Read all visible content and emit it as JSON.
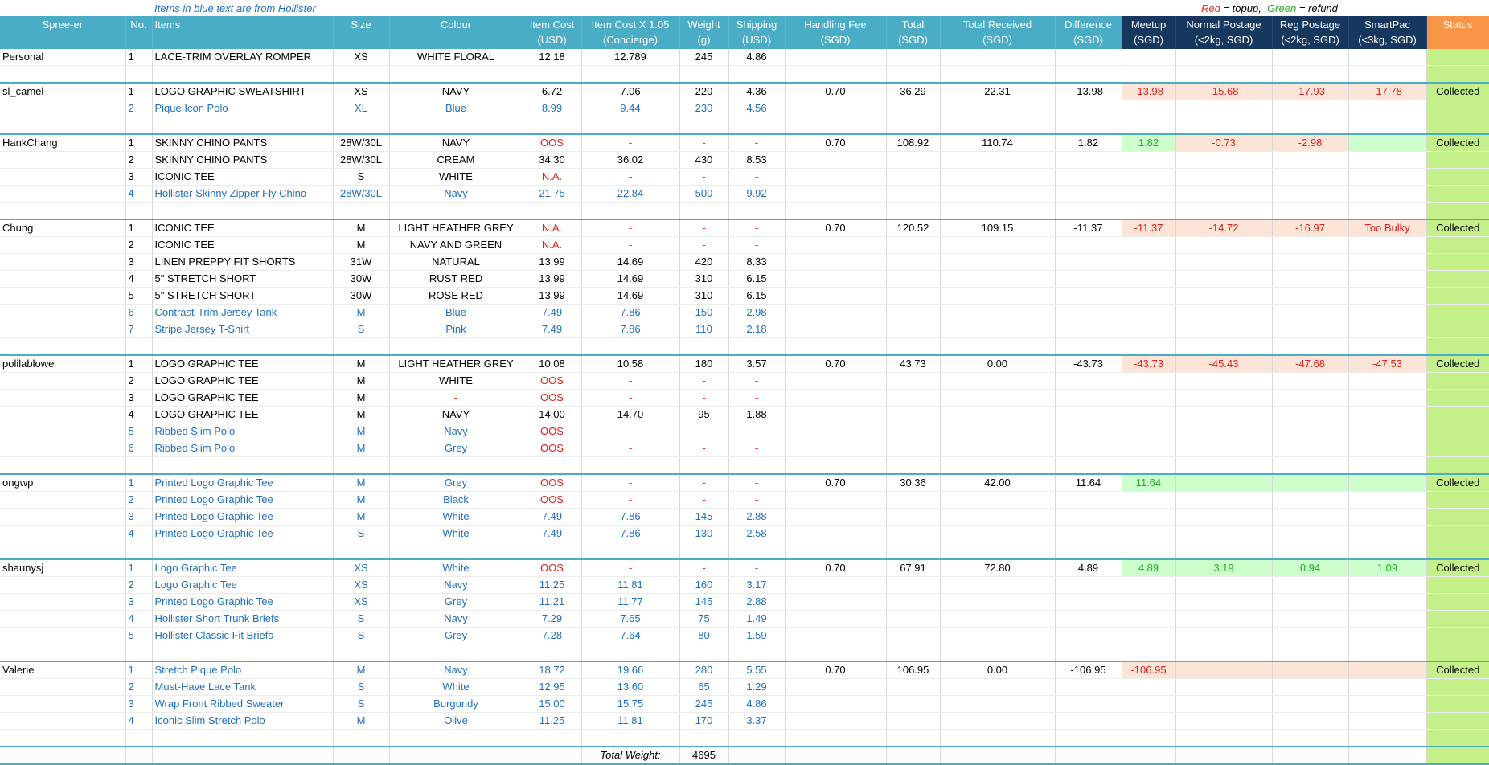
{
  "note_left": "Items in blue text are from Hollister",
  "note_red": "Red",
  "note_topup": " = topup,",
  "note_green": "Green",
  "note_refund": " = refund",
  "headers": [
    "Spree-er",
    "No.",
    "Items",
    "Size",
    "Colour",
    "Item Cost\n(USD)",
    "Item Cost X 1.05\n(Concierge)",
    "Weight\n(g)",
    "Shipping\n(USD)",
    "Handling Fee\n(SGD)",
    "Total\n(SGD)",
    "Total Received\n(SGD)",
    "Difference\n(SGD)",
    "Meetup\n(SGD)",
    "Normal Postage\n(<2kg, SGD)",
    "Reg Postage\n(<2kg, SGD)",
    "SmartPac\n(<3kg, SGD)",
    "Status"
  ],
  "total_weight_label": "Total Weight:",
  "total_weight_value": "4695",
  "colors": {
    "header": "#4bacc6",
    "header_dark": "#17375e",
    "status_header": "#f79646",
    "status_cell": "#c4f08a",
    "topup_bg": "#fce4d6",
    "refund_bg": "#ccffcc",
    "blue_text": "#1f6fbf",
    "red_text": "#e02020",
    "green_text": "#22aa22"
  },
  "groups": [
    {
      "name": "Personal",
      "handling": "",
      "total": "",
      "received": "",
      "difference": "",
      "meetup": "",
      "normal": "",
      "reg": "",
      "smartpac": "",
      "status": "",
      "tone": "none",
      "items": [
        {
          "no": "1",
          "item": "LACE-TRIM OVERLAY ROMPER",
          "size": "XS",
          "colour": "WHITE FLORAL",
          "cost": "12.18",
          "cost105": "12.789",
          "weight": "245",
          "ship": "4.86",
          "hollister": false,
          "costRed": false
        }
      ]
    },
    {
      "name": "sl_camel",
      "handling": "0.70",
      "total": "36.29",
      "received": "22.31",
      "difference": "-13.98",
      "meetup": "-13.98",
      "normal": "-15.68",
      "reg": "-17.93",
      "smartpac": "-17.78",
      "status": "Collected",
      "tone": "topup",
      "items": [
        {
          "no": "1",
          "item": "LOGO GRAPHIC SWEATSHIRT",
          "size": "XS",
          "colour": "NAVY",
          "cost": "6.72",
          "cost105": "7.06",
          "weight": "220",
          "ship": "4.36",
          "hollister": false,
          "costRed": false
        },
        {
          "no": "2",
          "item": "Pique Icon Polo",
          "size": "XL",
          "colour": "Blue",
          "cost": "8.99",
          "cost105": "9.44",
          "weight": "230",
          "ship": "4.56",
          "hollister": true,
          "costRed": false
        }
      ]
    },
    {
      "name": "HankChang",
      "handling": "0.70",
      "total": "108.92",
      "received": "110.74",
      "difference": "1.82",
      "meetup": "1.82",
      "normal": "-0.73",
      "reg": "-2.98",
      "smartpac": "",
      "status": "Collected",
      "tone": "mixed_hank",
      "items": [
        {
          "no": "1",
          "item": "SKINNY CHINO PANTS",
          "size": "28W/30L",
          "colour": "NAVY",
          "cost": "OOS",
          "cost105": "-",
          "weight": "-",
          "ship": "-",
          "hollister": false,
          "costRed": true
        },
        {
          "no": "2",
          "item": "SKINNY CHINO PANTS",
          "size": "28W/30L",
          "colour": "CREAM",
          "cost": "34.30",
          "cost105": "36.02",
          "weight": "430",
          "ship": "8.53",
          "hollister": false,
          "costRed": false
        },
        {
          "no": "3",
          "item": "ICONIC TEE",
          "size": "S",
          "colour": "WHITE",
          "cost": "N.A.",
          "cost105": "-",
          "weight": "-",
          "ship": "-",
          "hollister": false,
          "costRed": true
        },
        {
          "no": "4",
          "item": "Hollister Skinny Zipper Fly Chino",
          "size": "28W/30L",
          "colour": "Navy",
          "cost": "21.75",
          "cost105": "22.84",
          "weight": "500",
          "ship": "9.92",
          "hollister": true,
          "costRed": false
        }
      ]
    },
    {
      "name": "Chung",
      "handling": "0.70",
      "total": "120.52",
      "received": "109.15",
      "difference": "-11.37",
      "meetup": "-11.37",
      "normal": "-14.72",
      "reg": "-16.97",
      "smartpac": "Too Bulky",
      "status": "Collected",
      "tone": "topup",
      "items": [
        {
          "no": "1",
          "item": "ICONIC TEE",
          "size": "M",
          "colour": "LIGHT HEATHER GREY",
          "cost": "N.A.",
          "cost105": "-",
          "weight": "-",
          "ship": "-",
          "hollister": false,
          "costRed": true
        },
        {
          "no": "2",
          "item": "ICONIC TEE",
          "size": "M",
          "colour": "NAVY AND GREEN",
          "cost": "N.A.",
          "cost105": "-",
          "weight": "-",
          "ship": "-",
          "hollister": false,
          "costRed": true
        },
        {
          "no": "3",
          "item": "LINEN PREPPY FIT SHORTS",
          "size": "31W",
          "colour": "NATURAL",
          "cost": "13.99",
          "cost105": "14.69",
          "weight": "420",
          "ship": "8.33",
          "hollister": false,
          "costRed": false
        },
        {
          "no": "4",
          "item": "5\" STRETCH SHORT",
          "size": "30W",
          "colour": "RUST RED",
          "cost": "13.99",
          "cost105": "14.69",
          "weight": "310",
          "ship": "6.15",
          "hollister": false,
          "costRed": false
        },
        {
          "no": "5",
          "item": "5\" STRETCH SHORT",
          "size": "30W",
          "colour": "ROSE RED",
          "cost": "13.99",
          "cost105": "14.69",
          "weight": "310",
          "ship": "6.15",
          "hollister": false,
          "costRed": false
        },
        {
          "no": "6",
          "item": "Contrast-Trim Jersey Tank",
          "size": "M",
          "colour": "Blue",
          "cost": "7.49",
          "cost105": "7.86",
          "weight": "150",
          "ship": "2.98",
          "hollister": true,
          "costRed": false
        },
        {
          "no": "7",
          "item": "Stripe Jersey T-Shirt",
          "size": "S",
          "colour": "Pink",
          "cost": "7.49",
          "cost105": "7.86",
          "weight": "110",
          "ship": "2.18",
          "hollister": true,
          "costRed": false
        }
      ]
    },
    {
      "name": "polilablowe",
      "handling": "0.70",
      "total": "43.73",
      "received": "0.00",
      "difference": "-43.73",
      "meetup": "-43.73",
      "normal": "-45.43",
      "reg": "-47.68",
      "smartpac": "-47.53",
      "status": "Collected",
      "tone": "topup",
      "items": [
        {
          "no": "1",
          "item": "LOGO GRAPHIC TEE",
          "size": "M",
          "colour": "LIGHT HEATHER GREY",
          "cost": "10.08",
          "cost105": "10.58",
          "weight": "180",
          "ship": "3.57",
          "hollister": false,
          "costRed": false
        },
        {
          "no": "2",
          "item": "LOGO GRAPHIC TEE",
          "size": "M",
          "colour": "WHITE",
          "cost": "OOS",
          "cost105": "-",
          "weight": "-",
          "ship": "-",
          "hollister": false,
          "costRed": true
        },
        {
          "no": "3",
          "item": "LOGO GRAPHIC TEE",
          "size": "M",
          "colour": "-",
          "cost": "OOS",
          "cost105": "-",
          "weight": "-",
          "ship": "-",
          "hollister": false,
          "costRed": true,
          "colourRed": true
        },
        {
          "no": "4",
          "item": "LOGO GRAPHIC TEE",
          "size": "M",
          "colour": "NAVY",
          "cost": "14.00",
          "cost105": "14.70",
          "weight": "95",
          "ship": "1.88",
          "hollister": false,
          "costRed": false
        },
        {
          "no": "5",
          "item": " Ribbed Slim Polo",
          "size": "M",
          "colour": "Navy",
          "cost": "OOS",
          "cost105": "-",
          "weight": "-",
          "ship": "-",
          "hollister": true,
          "costRed": true
        },
        {
          "no": "6",
          "item": " Ribbed Slim Polo",
          "size": "M",
          "colour": "Grey",
          "cost": "OOS",
          "cost105": "-",
          "weight": "-",
          "ship": "-",
          "hollister": true,
          "costRed": true
        }
      ]
    },
    {
      "name": "ongwp",
      "handling": "0.70",
      "total": "30.36",
      "received": "42.00",
      "difference": "11.64",
      "meetup": "11.64",
      "normal": "",
      "reg": "",
      "smartpac": "",
      "status": "Collected",
      "tone": "refund",
      "items": [
        {
          "no": "1",
          "item": "Printed Logo Graphic Tee",
          "size": "M",
          "colour": "Grey",
          "cost": "OOS",
          "cost105": "-",
          "weight": "-",
          "ship": "-",
          "hollister": true,
          "costRed": true
        },
        {
          "no": "2",
          "item": "Printed Logo Graphic Tee",
          "size": "M",
          "colour": "Black",
          "cost": "OOS",
          "cost105": "-",
          "weight": "-",
          "ship": "-",
          "hollister": true,
          "costRed": true
        },
        {
          "no": "3",
          "item": "Printed Logo Graphic Tee",
          "size": "M",
          "colour": "White",
          "cost": "7.49",
          "cost105": "7.86",
          "weight": "145",
          "ship": "2.88",
          "hollister": true,
          "costRed": false
        },
        {
          "no": "4",
          "item": "Printed Logo Graphic Tee",
          "size": "S",
          "colour": "White",
          "cost": "7.49",
          "cost105": "7.86",
          "weight": "130",
          "ship": "2.58",
          "hollister": true,
          "costRed": false
        }
      ]
    },
    {
      "name": "shaunysj",
      "handling": "0.70",
      "total": "67.91",
      "received": "72.80",
      "difference": "4.89",
      "meetup": "4.89",
      "normal": "3.19",
      "reg": "0.94",
      "smartpac": "1.09",
      "status": "Collected",
      "tone": "refund",
      "items": [
        {
          "no": "1",
          "item": "Logo Graphic Tee",
          "size": "XS",
          "colour": "White",
          "cost": "OOS",
          "cost105": "-",
          "weight": "-",
          "ship": "-",
          "hollister": true,
          "costRed": true
        },
        {
          "no": "2",
          "item": "Logo Graphic Tee",
          "size": "XS",
          "colour": "Navy",
          "cost": "11.25",
          "cost105": "11.81",
          "weight": "160",
          "ship": "3.17",
          "hollister": true,
          "costRed": false
        },
        {
          "no": "3",
          "item": "Printed Logo Graphic Tee",
          "size": "XS",
          "colour": "Grey",
          "cost": "11.21",
          "cost105": "11.77",
          "weight": "145",
          "ship": "2.88",
          "hollister": true,
          "costRed": false
        },
        {
          "no": "4",
          "item": "Hollister Short Trunk Briefs",
          "size": "S",
          "colour": "Navy",
          "cost": "7.29",
          "cost105": "7.65",
          "weight": "75",
          "ship": "1.49",
          "hollister": true,
          "costRed": false
        },
        {
          "no": "5",
          "item": "Hollister Classic Fit Briefs",
          "size": "S",
          "colour": "Grey",
          "cost": "7.28",
          "cost105": "7.64",
          "weight": "80",
          "ship": "1.59",
          "hollister": true,
          "costRed": false
        }
      ]
    },
    {
      "name": "Valerie",
      "handling": "0.70",
      "total": "106.95",
      "received": "0.00",
      "difference": "-106.95",
      "meetup": "-106.95",
      "normal": "",
      "reg": "",
      "smartpac": "",
      "status": "Collected",
      "tone": "topup",
      "items": [
        {
          "no": "1",
          "item": "Stretch Pique Polo",
          "size": "M",
          "colour": "Navy",
          "cost": "18.72",
          "cost105": "19.66",
          "weight": "280",
          "ship": "5.55",
          "hollister": true,
          "costRed": false
        },
        {
          "no": "2",
          "item": "Must-Have Lace Tank",
          "size": "S",
          "colour": "White",
          "cost": "12.95",
          "cost105": "13.60",
          "weight": "65",
          "ship": "1.29",
          "hollister": true,
          "costRed": false
        },
        {
          "no": "3",
          "item": "Wrap Front Ribbed Sweater",
          "size": "S",
          "colour": "Burgundy",
          "cost": "15.00",
          "cost105": "15.75",
          "weight": "245",
          "ship": "4.86",
          "hollister": true,
          "costRed": false
        },
        {
          "no": "4",
          "item": "Iconic Slim Stretch Polo",
          "size": "M",
          "colour": "Olive",
          "cost": "11.25",
          "cost105": "11.81",
          "weight": "170",
          "ship": "3.37",
          "hollister": true,
          "costRed": false
        }
      ]
    }
  ]
}
